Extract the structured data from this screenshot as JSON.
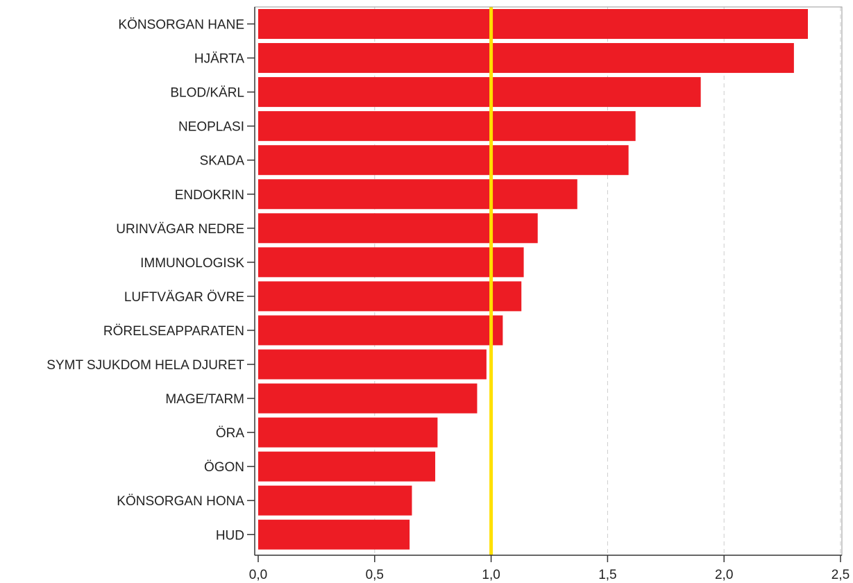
{
  "chart_data": {
    "type": "bar",
    "orientation": "horizontal",
    "categories": [
      "KÖNSORGAN HANE",
      "HJÄRTA",
      "BLOD/KÄRL",
      "NEOPLASI",
      "SKADA",
      "ENDOKRIN",
      "URINVÄGAR NEDRE",
      "IMMUNOLOGISK",
      "LUFTVÄGAR ÖVRE",
      "RÖRELSEAPPARATEN",
      "SYMT SJUKDOM HELA DJURET",
      "MAGE/TARM",
      "ÖRA",
      "ÖGON",
      "KÖNSORGAN HONA",
      "HUD"
    ],
    "values": [
      2.36,
      2.3,
      1.9,
      1.62,
      1.59,
      1.37,
      1.2,
      1.14,
      1.13,
      1.05,
      0.98,
      0.94,
      0.77,
      0.76,
      0.66,
      0.65
    ],
    "xlim": [
      0,
      2.5
    ],
    "xticks": [
      0,
      0.5,
      1.0,
      1.5,
      2.0,
      2.5
    ],
    "xtick_labels": [
      "0,0",
      "0,5",
      "1,0",
      "1,5",
      "2,0",
      "2,5"
    ],
    "reference_line": {
      "x": 1.0,
      "color": "#FFE000"
    },
    "grid": "vertical dashed",
    "bar_color": "#ED1C24",
    "title": "",
    "xlabel": "",
    "ylabel": ""
  }
}
